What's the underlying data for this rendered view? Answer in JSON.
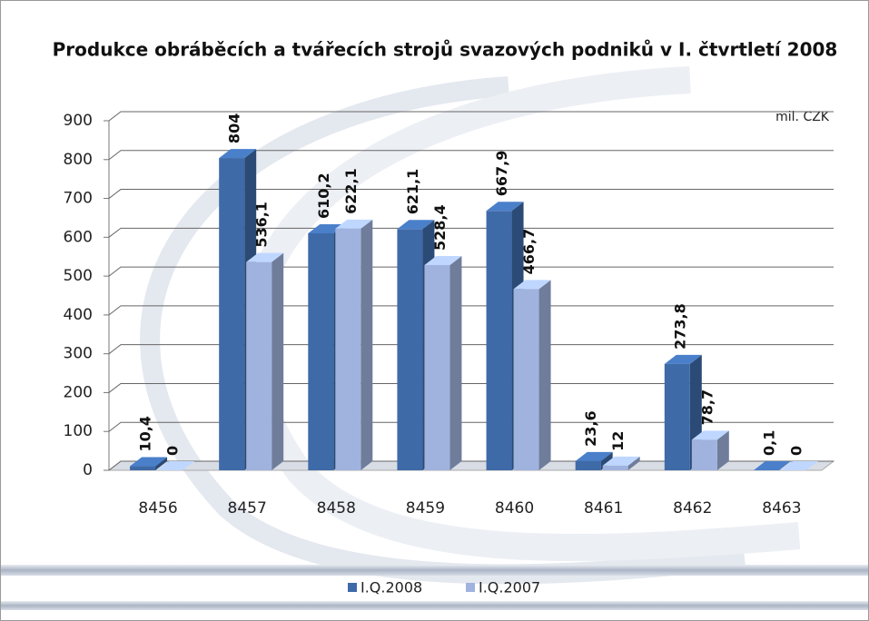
{
  "chart_data": {
    "type": "bar3d",
    "title": "Produkce obráběcích a tvářecích strojů svazových podniků v I. čtvrtletí 2008",
    "unit_label": "mil. CZK",
    "categories": [
      "8456",
      "8457",
      "8458",
      "8459",
      "8460",
      "8461",
      "8462",
      "8463"
    ],
    "series": [
      {
        "name": "I.Q.2008",
        "color": "#3e6aa8",
        "values": [
          10.4,
          804,
          610.2,
          621.1,
          667.9,
          23.6,
          273.8,
          0.1
        ],
        "value_labels": [
          "10,4",
          "804",
          "610,2",
          "621,1",
          "667,9",
          "23,6",
          "273,8",
          "0,1"
        ]
      },
      {
        "name": "I.Q.2007",
        "color": "#9fb3de",
        "values": [
          0,
          536.1,
          622.1,
          528.4,
          466.7,
          12,
          78.7,
          0
        ],
        "value_labels": [
          "0",
          "536,1",
          "622,1",
          "528,4",
          "466,7",
          "12",
          "78,7",
          "0"
        ]
      }
    ],
    "ylim": [
      0,
      900
    ],
    "yticks": [
      0,
      100,
      200,
      300,
      400,
      500,
      600,
      700,
      800,
      900
    ],
    "grid": true,
    "legend": "bottom"
  }
}
